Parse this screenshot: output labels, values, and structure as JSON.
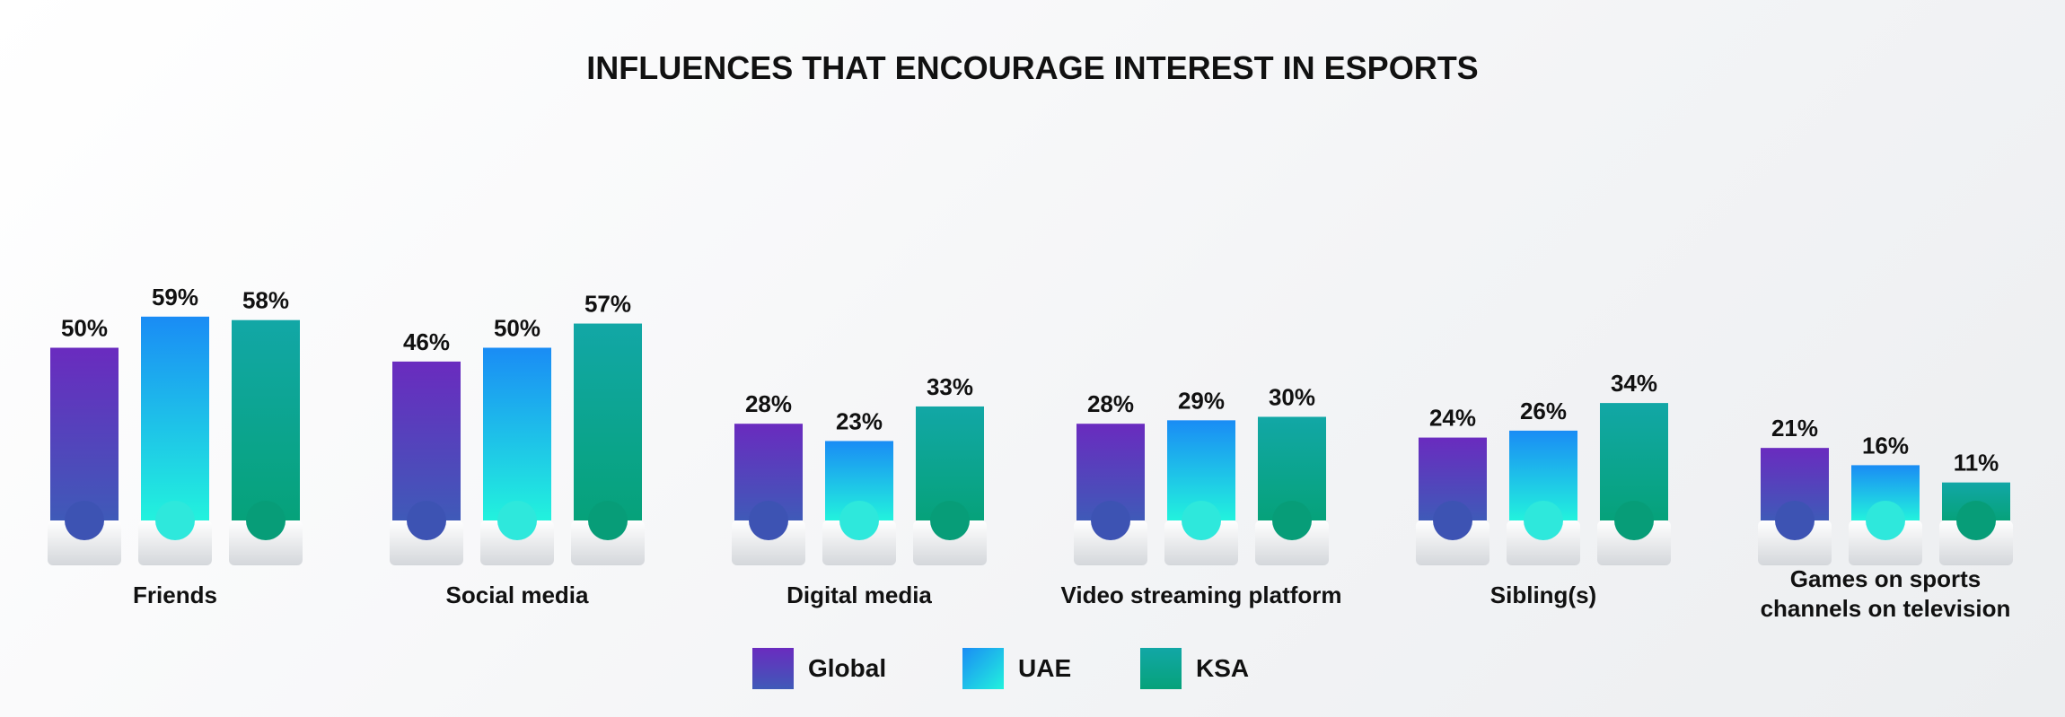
{
  "chart_data": {
    "type": "bar",
    "title": "INFLUENCES THAT ENCOURAGE INTEREST IN ESPORTS",
    "categories": [
      "Friends",
      "Social media",
      "Digital media",
      "Video streaming platform",
      "Sibling(s)",
      "Games on sports channels on television"
    ],
    "category_lines": [
      [
        "Friends"
      ],
      [
        "Social media"
      ],
      [
        "Digital media"
      ],
      [
        "Video streaming platform"
      ],
      [
        "Sibling(s)"
      ],
      [
        "Games on sports",
        "channels on television"
      ]
    ],
    "series": [
      {
        "name": "Global",
        "values": [
          50,
          46,
          28,
          28,
          24,
          21
        ],
        "labels": [
          "50%",
          "46%",
          "28%",
          "28%",
          "24%",
          "21%"
        ],
        "color_top": "#6a2bbf",
        "color_bottom": "#3f5ab8",
        "cap_color": "#3d53b3"
      },
      {
        "name": "UAE",
        "values": [
          59,
          50,
          23,
          29,
          26,
          16
        ],
        "labels": [
          "59%",
          "50%",
          "23%",
          "29%",
          "26%",
          "16%"
        ],
        "color_top": "#1a8cf5",
        "color_bottom": "#22f2dd",
        "cap_color": "#2ee8dc"
      },
      {
        "name": "KSA",
        "values": [
          58,
          57,
          33,
          30,
          34,
          11
        ],
        "labels": [
          "58%",
          "57%",
          "33%",
          "30%",
          "34%",
          "11%"
        ],
        "color_top": "#12a7a6",
        "color_bottom": "#06a27a",
        "cap_color": "#079d78"
      }
    ],
    "ylim": [
      0,
      70
    ],
    "grid": false,
    "legend": "bottom-center"
  }
}
